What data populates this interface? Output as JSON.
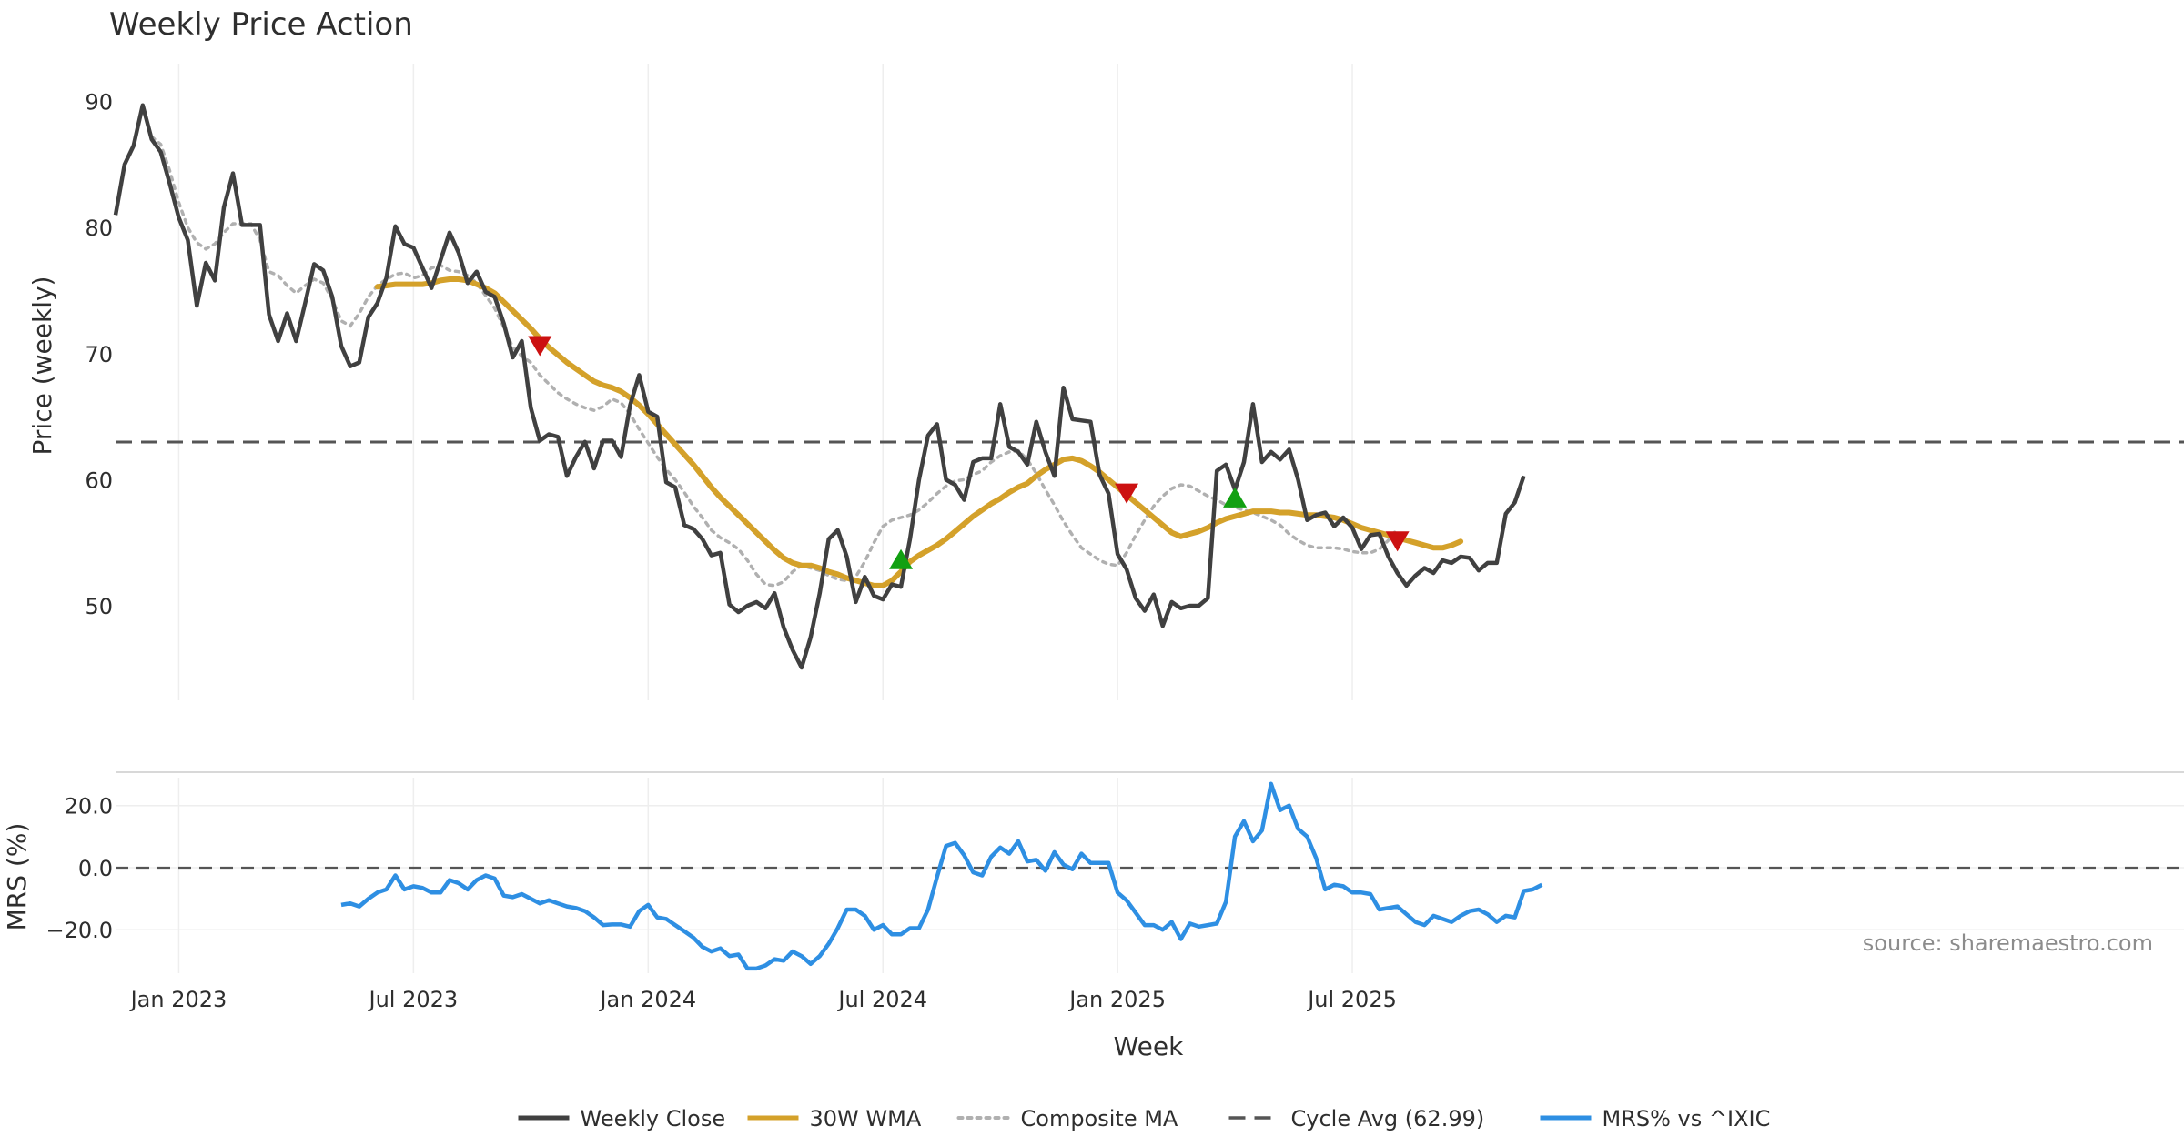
{
  "chart_data": {
    "type": "line",
    "title": "Weekly Price Action",
    "source_note": "source: sharemaestro.com",
    "xlabel": "Week",
    "x_start": "2022-11-13",
    "x_interval_weeks": 1,
    "x_ticks": [
      {
        "label": "Jan 2023",
        "week": 7
      },
      {
        "label": "Jul 2023",
        "week": 33
      },
      {
        "label": "Jan 2024",
        "week": 59
      },
      {
        "label": "Jul 2024",
        "week": 85
      },
      {
        "label": "Jan 2025",
        "week": 111
      },
      {
        "label": "Jul 2025",
        "week": 137
      }
    ],
    "price_panel": {
      "ylabel": "Price (weekly)",
      "ylim": [
        42.5,
        93
      ],
      "yticks": [
        50,
        60,
        70,
        80,
        90
      ],
      "cycle_avg": 62.99,
      "series": [
        {
          "name": "Weekly Close",
          "color": "#404040",
          "start_week": 0,
          "values": [
            81.0,
            85.0,
            86.5,
            89.7,
            87.0,
            86.0,
            83.5,
            80.8,
            79.0,
            73.8,
            77.2,
            75.8,
            81.6,
            84.3,
            80.2,
            80.2,
            80.2,
            73.1,
            71.0,
            73.2,
            71.0,
            74.0,
            77.1,
            76.6,
            74.5,
            70.6,
            69.0,
            69.3,
            72.9,
            74.0,
            76.0,
            80.1,
            78.7,
            78.4,
            76.8,
            75.2,
            77.4,
            79.6,
            78.0,
            75.6,
            76.5,
            74.9,
            74.5,
            72.4,
            69.7,
            71.0,
            65.7,
            63.1,
            63.6,
            63.4,
            60.3,
            61.8,
            63.0,
            60.9,
            63.1,
            63.1,
            61.8,
            65.9,
            68.3,
            65.4,
            65.0,
            59.8,
            59.4,
            56.4,
            56.1,
            55.3,
            54.0,
            54.2,
            50.1,
            49.5,
            50.0,
            50.3,
            49.8,
            51.0,
            48.3,
            46.5,
            45.1,
            47.5,
            51.0,
            55.3,
            56.0,
            53.9,
            50.3,
            52.3,
            50.8,
            50.5,
            51.7,
            51.5,
            55.3,
            60.0,
            63.5,
            64.4,
            60.0,
            59.6,
            58.4,
            61.4,
            61.7,
            61.7,
            66.0,
            62.6,
            62.2,
            61.2,
            64.6,
            62.2,
            60.3,
            67.3,
            64.8,
            64.7,
            64.6,
            60.4,
            58.9,
            54.1,
            52.9,
            50.6,
            49.6,
            50.9,
            48.4,
            50.3,
            49.8,
            50.0,
            50.0,
            50.6,
            60.7,
            61.2,
            59.2,
            61.4,
            66.0,
            61.4,
            62.2,
            61.6,
            62.4,
            60.0,
            56.8,
            57.2,
            57.4,
            56.3,
            57.0,
            56.2,
            54.5,
            55.6,
            55.7,
            53.9,
            52.6,
            51.6,
            52.4,
            53.0,
            52.6,
            53.6,
            53.4,
            53.9,
            53.8,
            52.8,
            53.4,
            53.4,
            57.3,
            58.2,
            60.3
          ]
        },
        {
          "name": "30W WMA",
          "color": "#d4a12a",
          "start_week": 29,
          "values": [
            75.3,
            75.4,
            75.5,
            75.5,
            75.5,
            75.5,
            75.6,
            75.8,
            75.9,
            75.9,
            75.8,
            75.5,
            75.2,
            74.8,
            74.1,
            73.4,
            72.7,
            72.0,
            71.2,
            70.5,
            69.9,
            69.3,
            68.8,
            68.3,
            67.8,
            67.5,
            67.3,
            67.0,
            66.5,
            65.9,
            65.2,
            64.4,
            63.6,
            62.8,
            62.0,
            61.2,
            60.3,
            59.4,
            58.6,
            57.9,
            57.2,
            56.5,
            55.8,
            55.1,
            54.4,
            53.8,
            53.4,
            53.2,
            53.2,
            53.0,
            52.7,
            52.5,
            52.2,
            52.0,
            51.8,
            51.6,
            51.6,
            52.0,
            52.7,
            53.5,
            54.0,
            54.4,
            54.8,
            55.3,
            55.9,
            56.5,
            57.1,
            57.6,
            58.1,
            58.5,
            59.0,
            59.4,
            59.7,
            60.3,
            60.8,
            61.2,
            61.6,
            61.7,
            61.5,
            61.1,
            60.6,
            60.0,
            59.4,
            58.8,
            58.2,
            57.6,
            57.0,
            56.4,
            55.8,
            55.5,
            55.7,
            55.9,
            56.2,
            56.6,
            56.9,
            57.1,
            57.3,
            57.5,
            57.5,
            57.5,
            57.4,
            57.4,
            57.3,
            57.2,
            57.2,
            57.1,
            57.0,
            56.8,
            56.5,
            56.2,
            56.0,
            55.8,
            55.6,
            55.4,
            55.2,
            55.0,
            54.8,
            54.6,
            54.6,
            54.8,
            55.1
          ]
        },
        {
          "name": "Composite MA",
          "color": "#b0b0b0",
          "start_week": 4,
          "values": [
            87.2,
            86.6,
            84.5,
            82.0,
            80.0,
            78.8,
            78.3,
            78.7,
            79.6,
            80.3,
            80.3,
            80.3,
            79.0,
            76.5,
            76.2,
            75.4,
            74.8,
            75.4,
            75.9,
            75.6,
            74.3,
            72.6,
            72.2,
            73.2,
            74.5,
            75.4,
            75.9,
            76.3,
            76.4,
            76.0,
            76.2,
            76.8,
            77.0,
            76.6,
            76.5,
            76.2,
            75.6,
            74.6,
            73.6,
            72.1,
            70.5,
            69.8,
            69.3,
            68.3,
            67.6,
            66.9,
            66.4,
            66.0,
            65.7,
            65.5,
            65.8,
            66.4,
            66.1,
            65.2,
            64.0,
            62.9,
            61.8,
            60.8,
            60.0,
            59.0,
            57.9,
            57.0,
            56.0,
            55.4,
            55.0,
            54.5,
            53.6,
            52.5,
            51.7,
            51.6,
            51.9,
            52.7,
            53.2,
            53.0,
            52.8,
            52.4,
            52.1,
            52.0,
            52.3,
            53.5,
            55.0,
            56.3,
            56.8,
            57.0,
            57.2,
            57.6,
            58.2,
            58.9,
            59.5,
            59.9,
            60.0,
            60.4,
            60.7,
            61.4,
            61.9,
            62.2,
            62.3,
            61.6,
            60.5,
            59.2,
            58.0,
            56.7,
            55.6,
            54.6,
            54.1,
            53.6,
            53.3,
            53.2,
            54.2,
            55.6,
            56.8,
            57.9,
            58.7,
            59.3,
            59.6,
            59.5,
            59.1,
            58.7,
            58.4,
            58.0,
            57.8,
            57.6,
            57.4,
            57.1,
            56.8,
            56.4,
            55.7,
            55.2,
            54.8,
            54.6,
            54.6,
            54.6,
            54.5,
            54.3,
            54.2,
            54.2,
            54.5,
            55.2,
            56.1
          ]
        }
      ],
      "signals": [
        {
          "type": "sell",
          "week": 47,
          "value": 70.6,
          "color": "#cc1111"
        },
        {
          "type": "buy",
          "week": 87,
          "value": 53.7,
          "color": "#12a012"
        },
        {
          "type": "sell",
          "week": 112,
          "value": 58.9,
          "color": "#cc1111"
        },
        {
          "type": "buy",
          "week": 124,
          "value": 58.6,
          "color": "#12a012"
        },
        {
          "type": "sell",
          "week": 142,
          "value": 55.1,
          "color": "#cc1111"
        }
      ]
    },
    "mrs_panel": {
      "ylabel": "MRS (%)",
      "ylim": [
        -34,
        29
      ],
      "yticks": [
        -20.0,
        0.0,
        20.0
      ],
      "ytick_labels": [
        "−20.0",
        "0.0",
        "20.0"
      ],
      "series": [
        {
          "name": "MRS% vs ^IXIC",
          "color": "#2e8fe3",
          "start_week": 25,
          "values": [
            -12.0,
            -11.5,
            -12.5,
            -10.0,
            -8.0,
            -7.0,
            -2.5,
            -7.0,
            -6.0,
            -6.5,
            -8.0,
            -8.0,
            -4.0,
            -5.0,
            -7.0,
            -4.0,
            -2.5,
            -3.5,
            -9.0,
            -9.5,
            -8.5,
            -10.0,
            -11.5,
            -10.5,
            -11.5,
            -12.5,
            -13.0,
            -14.0,
            -16.0,
            -18.5,
            -18.3,
            -18.3,
            -19.0,
            -14.0,
            -12.0,
            -16.0,
            -16.5,
            -18.5,
            -20.5,
            -22.5,
            -25.5,
            -27.0,
            -26.0,
            -28.5,
            -28.0,
            -32.5,
            -32.5,
            -31.5,
            -29.5,
            -30.0,
            -27.0,
            -28.5,
            -31.0,
            -28.5,
            -24.5,
            -19.5,
            -13.5,
            -13.5,
            -15.5,
            -20.0,
            -18.5,
            -21.5,
            -21.5,
            -19.5,
            -19.5,
            -13.5,
            -3.0,
            7.0,
            8.0,
            4.0,
            -1.5,
            -2.5,
            3.5,
            6.5,
            4.5,
            8.5,
            2.0,
            2.5,
            -1.0,
            5.0,
            1.0,
            -0.5,
            4.5,
            1.5,
            1.5,
            1.5,
            -8.0,
            -10.5,
            -14.5,
            -18.5,
            -18.5,
            -20.0,
            -17.5,
            -23.0,
            -18.0,
            -19.0,
            -18.5,
            -18.0,
            -11.0,
            10.0,
            15.0,
            8.5,
            12.0,
            27.0,
            18.5,
            20.0,
            12.5,
            10.0,
            3.0,
            -7.0,
            -5.5,
            -6.0,
            -8.0,
            -8.0,
            -8.5,
            -13.5,
            -13.0,
            -12.5,
            -15.0,
            -17.5,
            -18.5,
            -15.5,
            -16.5,
            -17.5,
            -15.5,
            -14.0,
            -13.5,
            -15.0,
            -17.5,
            -15.5,
            -16.0,
            -7.5,
            -7.0,
            -5.5
          ]
        }
      ]
    },
    "legend": {
      "position": "bottom-center",
      "entries": [
        {
          "label": "Weekly Close",
          "style": "solid",
          "color": "#404040"
        },
        {
          "label": "30W WMA",
          "style": "solid",
          "color": "#d4a12a"
        },
        {
          "label": "Composite MA",
          "style": "dotted",
          "color": "#b0b0b0"
        },
        {
          "label": "Cycle Avg (62.99)",
          "style": "dashed",
          "color": "#555555"
        },
        {
          "label": "MRS% vs ^IXIC",
          "style": "solid",
          "color": "#2e8fe3"
        }
      ]
    }
  }
}
